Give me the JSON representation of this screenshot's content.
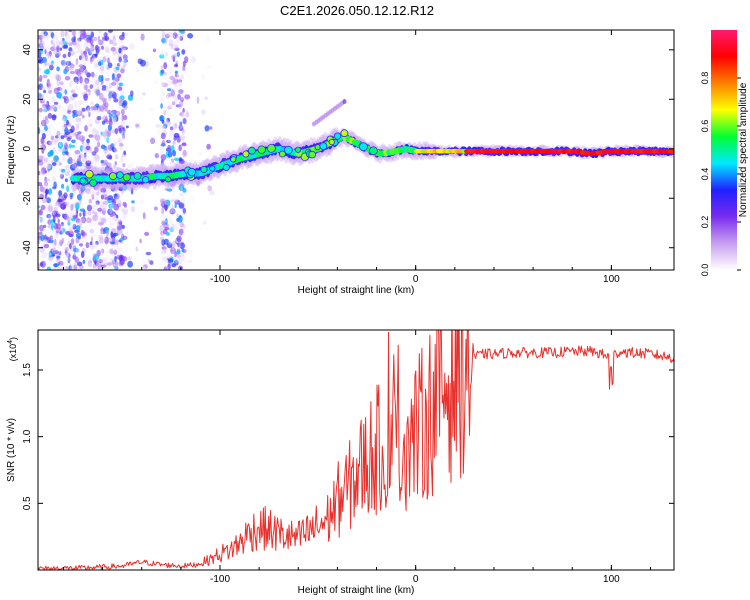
{
  "title": "C2E1.2026.050.12.12.R12",
  "colors": {
    "snr_line": "#e8312c",
    "axis": "#000000",
    "colorbar_stops": [
      "#ffffff",
      "#c8a0f0",
      "#7a2cf0",
      "#2020ff",
      "#00e8ff",
      "#00ff30",
      "#ffff00",
      "#ff8000",
      "#ff0000",
      "#ff1a70"
    ]
  },
  "chart_data": [
    {
      "type": "heatmap",
      "name": "spectrogram",
      "xlabel": "Height of straight line (km)",
      "ylabel": "Frequency (Hz)",
      "xlim": [
        -193,
        132
      ],
      "ylim": [
        -49,
        48
      ],
      "xticks": [
        -100,
        0,
        100
      ],
      "xtick_labels": [
        "-100",
        "0",
        "100"
      ],
      "yticks": [
        -40,
        -20,
        0,
        20,
        40
      ],
      "ytick_labels": [
        "-40",
        "-20",
        "0",
        "20",
        "40"
      ],
      "ridge": {
        "x": [
          -172,
          -160,
          -150,
          -140,
          -132,
          -125,
          -118,
          -110,
          -100,
          -90,
          -80,
          -70,
          -60,
          -50,
          -42,
          -37,
          -32,
          -27,
          -22,
          -18,
          -10,
          -5,
          0,
          10,
          30,
          60,
          80,
          90,
          100,
          120,
          132
        ],
        "y": [
          -12,
          -12,
          -12,
          -12,
          -11,
          -11,
          -10,
          -10,
          -7,
          -4,
          -2,
          0,
          -2,
          0,
          3,
          5,
          3,
          1,
          -1,
          -2,
          -1,
          0,
          -1,
          -1,
          -1,
          -1,
          -1,
          -2,
          -1,
          -1,
          -1
        ]
      },
      "colorbar": {
        "label": "Normalized spectral amplitude",
        "range": [
          0,
          1
        ],
        "ticks": [
          0,
          0.2,
          0.4,
          0.6,
          0.8
        ],
        "tick_labels": [
          "0.0",
          "0.2",
          "0.4",
          "0.6",
          "0.8"
        ]
      }
    },
    {
      "type": "line",
      "name": "snr",
      "xlabel": "Height of straight line (km)",
      "ylabel": "SNR (10 * v/v)",
      "scale_label_base": "(x10",
      "scale_label_exp": "4",
      "scale_label_end": ")",
      "xlim": [
        -193,
        132
      ],
      "ylim": [
        0,
        1.8
      ],
      "xticks": [
        -100,
        0,
        100
      ],
      "xtick_labels": [
        "-100",
        "0",
        "100"
      ],
      "yticks": [
        0.5,
        1.0,
        1.5
      ],
      "ytick_labels": [
        "0.5",
        "1.0",
        "1.5"
      ],
      "series": [
        {
          "name": "SNR",
          "x": [
            -193,
            -170,
            -150,
            -140,
            -130,
            -120,
            -112,
            -105,
            -100,
            -95,
            -90,
            -85,
            -80,
            -75,
            -70,
            -65,
            -60,
            -55,
            -50,
            -45,
            -40,
            -35,
            -30,
            -25,
            -20,
            -15,
            -12,
            -10,
            -7,
            -5,
            -2,
            0,
            3,
            6,
            10,
            15,
            20,
            25,
            30,
            35,
            40,
            50,
            60,
            70,
            80,
            90,
            95,
            98,
            100,
            102,
            105,
            110,
            120,
            132
          ],
          "y": [
            0.01,
            0.015,
            0.03,
            0.06,
            0.04,
            0.03,
            0.04,
            0.08,
            0.12,
            0.15,
            0.2,
            0.28,
            0.32,
            0.3,
            0.27,
            0.25,
            0.24,
            0.28,
            0.33,
            0.38,
            0.52,
            0.6,
            0.72,
            0.82,
            0.9,
            0.92,
            0.95,
            0.92,
            0.95,
            0.98,
            1.0,
            1.02,
            1.08,
            1.16,
            1.26,
            1.38,
            1.48,
            1.56,
            1.6,
            1.62,
            1.62,
            1.63,
            1.63,
            1.63,
            1.64,
            1.64,
            1.62,
            1.6,
            1.6,
            1.62,
            1.64,
            1.63,
            1.62,
            1.59
          ]
        }
      ]
    }
  ]
}
